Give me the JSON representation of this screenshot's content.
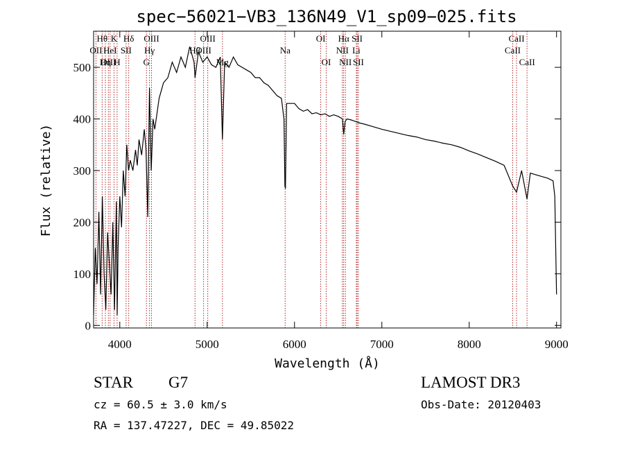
{
  "chart_data": {
    "type": "line",
    "title": "spec−56021−VB3_136N49_V1_sp09−025.fits",
    "xlabel": "Wavelength (Å)",
    "ylabel": "Flux (relative)",
    "xlim": [
      3700,
      9050
    ],
    "ylim": [
      -5,
      570
    ],
    "x_ticks": [
      4000,
      5000,
      6000,
      7000,
      8000,
      9000
    ],
    "y_ticks": [
      0,
      100,
      200,
      300,
      400,
      500
    ],
    "series": [
      {
        "name": "spectrum",
        "x": [
          3700,
          3720,
          3740,
          3760,
          3780,
          3800,
          3820,
          3840,
          3860,
          3880,
          3900,
          3920,
          3940,
          3960,
          3970,
          3980,
          4000,
          4020,
          4040,
          4060,
          4080,
          4100,
          4120,
          4150,
          4180,
          4200,
          4220,
          4250,
          4280,
          4300,
          4320,
          4340,
          4360,
          4380,
          4400,
          4450,
          4500,
          4550,
          4600,
          4650,
          4700,
          4750,
          4800,
          4850,
          4861,
          4900,
          4950,
          5000,
          5050,
          5100,
          5150,
          5175,
          5200,
          5250,
          5300,
          5350,
          5400,
          5450,
          5500,
          5550,
          5600,
          5650,
          5700,
          5750,
          5800,
          5850,
          5880,
          5890,
          5896,
          5910,
          5950,
          6000,
          6050,
          6100,
          6150,
          6200,
          6250,
          6300,
          6350,
          6400,
          6450,
          6500,
          6550,
          6563,
          6580,
          6600,
          6650,
          6700,
          6750,
          6800,
          6900,
          7000,
          7100,
          7200,
          7300,
          7400,
          7500,
          7600,
          7700,
          7800,
          7900,
          8000,
          8100,
          8200,
          8300,
          8400,
          8498,
          8542,
          8600,
          8662,
          8700,
          8800,
          8900,
          8960,
          8980,
          9000
        ],
        "y": [
          20,
          150,
          80,
          220,
          60,
          250,
          100,
          30,
          180,
          120,
          60,
          200,
          30,
          240,
          20,
          150,
          250,
          190,
          300,
          250,
          350,
          300,
          320,
          300,
          340,
          310,
          360,
          330,
          380,
          340,
          210,
          460,
          300,
          400,
          380,
          440,
          470,
          480,
          510,
          490,
          520,
          500,
          540,
          510,
          480,
          530,
          510,
          520,
          505,
          500,
          520,
          360,
          510,
          500,
          520,
          505,
          500,
          495,
          490,
          480,
          480,
          470,
          465,
          455,
          445,
          440,
          400,
          270,
          265,
          430,
          430,
          430,
          420,
          415,
          418,
          410,
          412,
          408,
          410,
          405,
          408,
          405,
          400,
          370,
          395,
          400,
          398,
          395,
          392,
          390,
          385,
          380,
          376,
          372,
          368,
          365,
          360,
          357,
          353,
          350,
          345,
          338,
          332,
          325,
          318,
          310,
          270,
          258,
          300,
          245,
          295,
          290,
          285,
          280,
          250,
          60
        ]
      }
    ],
    "line_markers": [
      {
        "label": "Hθ",
        "wavelength": 3798,
        "row": 1
      },
      {
        "label": "OII",
        "wavelength": 3727,
        "row": 2
      },
      {
        "label": "OIII",
        "wavelength": 3869,
        "row": 3
      },
      {
        "label": "K",
        "wavelength": 3934,
        "row": 1
      },
      {
        "label": "HeI",
        "wavelength": 3889,
        "row": 2
      },
      {
        "label": "Hη",
        "wavelength": 3835,
        "row": 3
      },
      {
        "label": "H",
        "wavelength": 3969,
        "row": 3
      },
      {
        "label": "SII",
        "wavelength": 4072,
        "row": 2
      },
      {
        "label": "Hδ",
        "wavelength": 4102,
        "row": 1
      },
      {
        "label": "OIII",
        "wavelength": 4363,
        "row": 1
      },
      {
        "label": "Hγ",
        "wavelength": 4340,
        "row": 2
      },
      {
        "label": "G",
        "wavelength": 4305,
        "row": 3
      },
      {
        "label": "Hβ",
        "wavelength": 4861,
        "row": 2
      },
      {
        "label": "OIII",
        "wavelength": 4959,
        "row": 2
      },
      {
        "label": "OIII",
        "wavelength": 5007,
        "row": 1
      },
      {
        "label": "Mg",
        "wavelength": 5175,
        "row": 3
      },
      {
        "label": "Na",
        "wavelength": 5893,
        "row": 2
      },
      {
        "label": "OI",
        "wavelength": 6300,
        "row": 1
      },
      {
        "label": "OI",
        "wavelength": 6363,
        "row": 3
      },
      {
        "label": "Hα",
        "wavelength": 6563,
        "row": 1
      },
      {
        "label": "NII",
        "wavelength": 6548,
        "row": 2
      },
      {
        "label": "NII",
        "wavelength": 6583,
        "row": 3
      },
      {
        "label": "SII",
        "wavelength": 6717,
        "row": 1
      },
      {
        "label": "Li",
        "wavelength": 6708,
        "row": 2
      },
      {
        "label": "SII",
        "wavelength": 6731,
        "row": 3
      },
      {
        "label": "CaII",
        "wavelength": 8542,
        "row": 1
      },
      {
        "label": "CaII",
        "wavelength": 8498,
        "row": 2
      },
      {
        "label": "CaII",
        "wavelength": 8662,
        "row": 3
      }
    ]
  },
  "info": {
    "object_class": "STAR",
    "subclass": "G7",
    "redshift": "cz = 60.5 ± 3.0 km/s",
    "coords": "RA = 137.47227, DEC =  49.85022",
    "survey": "LAMOST DR3",
    "obs_date": "Obs-Date: 20120403"
  },
  "colors": {
    "marker": "#b22222",
    "spectrum": "#000000",
    "axis": "#000000"
  }
}
